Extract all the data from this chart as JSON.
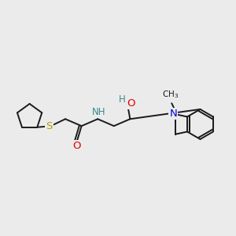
{
  "background_color": "#ebebeb",
  "bond_color": "#1a1a1a",
  "atom_colors": {
    "S": "#b8a000",
    "O": "#e00000",
    "N": "#0000dd",
    "H_teal": "#3a8a8a",
    "C": "#1a1a1a"
  },
  "figsize": [
    3.0,
    3.0
  ],
  "dpi": 100
}
